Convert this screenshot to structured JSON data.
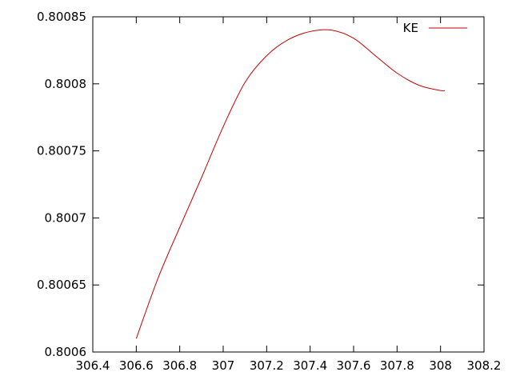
{
  "chart_data": {
    "type": "line",
    "title": "",
    "xlabel": "",
    "ylabel": "",
    "xlim": [
      306.4,
      308.2
    ],
    "ylim": [
      0.8006,
      0.80085
    ],
    "x_ticks": [
      306.4,
      306.6,
      306.8,
      307.0,
      307.2,
      307.4,
      307.6,
      307.8,
      308.0,
      308.2
    ],
    "x_tick_labels": [
      "306.4",
      "306.6",
      "306.8",
      "307",
      "307.2",
      "307.4",
      "307.6",
      "307.8",
      "308",
      "308.2"
    ],
    "y_ticks": [
      0.8006,
      0.80065,
      0.8007,
      0.80075,
      0.8008,
      0.80085
    ],
    "y_tick_labels": [
      "0.8006",
      "0.80065",
      "0.8007",
      "0.80075",
      "0.8008",
      "0.80085"
    ],
    "grid": false,
    "legend": "top-right",
    "series": [
      {
        "name": "KE",
        "color": "#cc0000",
        "x": [
          306.6,
          306.7,
          306.8,
          306.9,
          307.0,
          307.1,
          307.2,
          307.3,
          307.4,
          307.5,
          307.6,
          307.7,
          307.8,
          307.9,
          308.0,
          308.02
        ],
        "y": [
          0.80061,
          0.800655,
          0.800693,
          0.80073,
          0.800768,
          0.800801,
          0.800821,
          0.800833,
          0.800839,
          0.80084,
          0.800834,
          0.800821,
          0.800808,
          0.800799,
          0.800795,
          0.800795
        ]
      }
    ]
  }
}
